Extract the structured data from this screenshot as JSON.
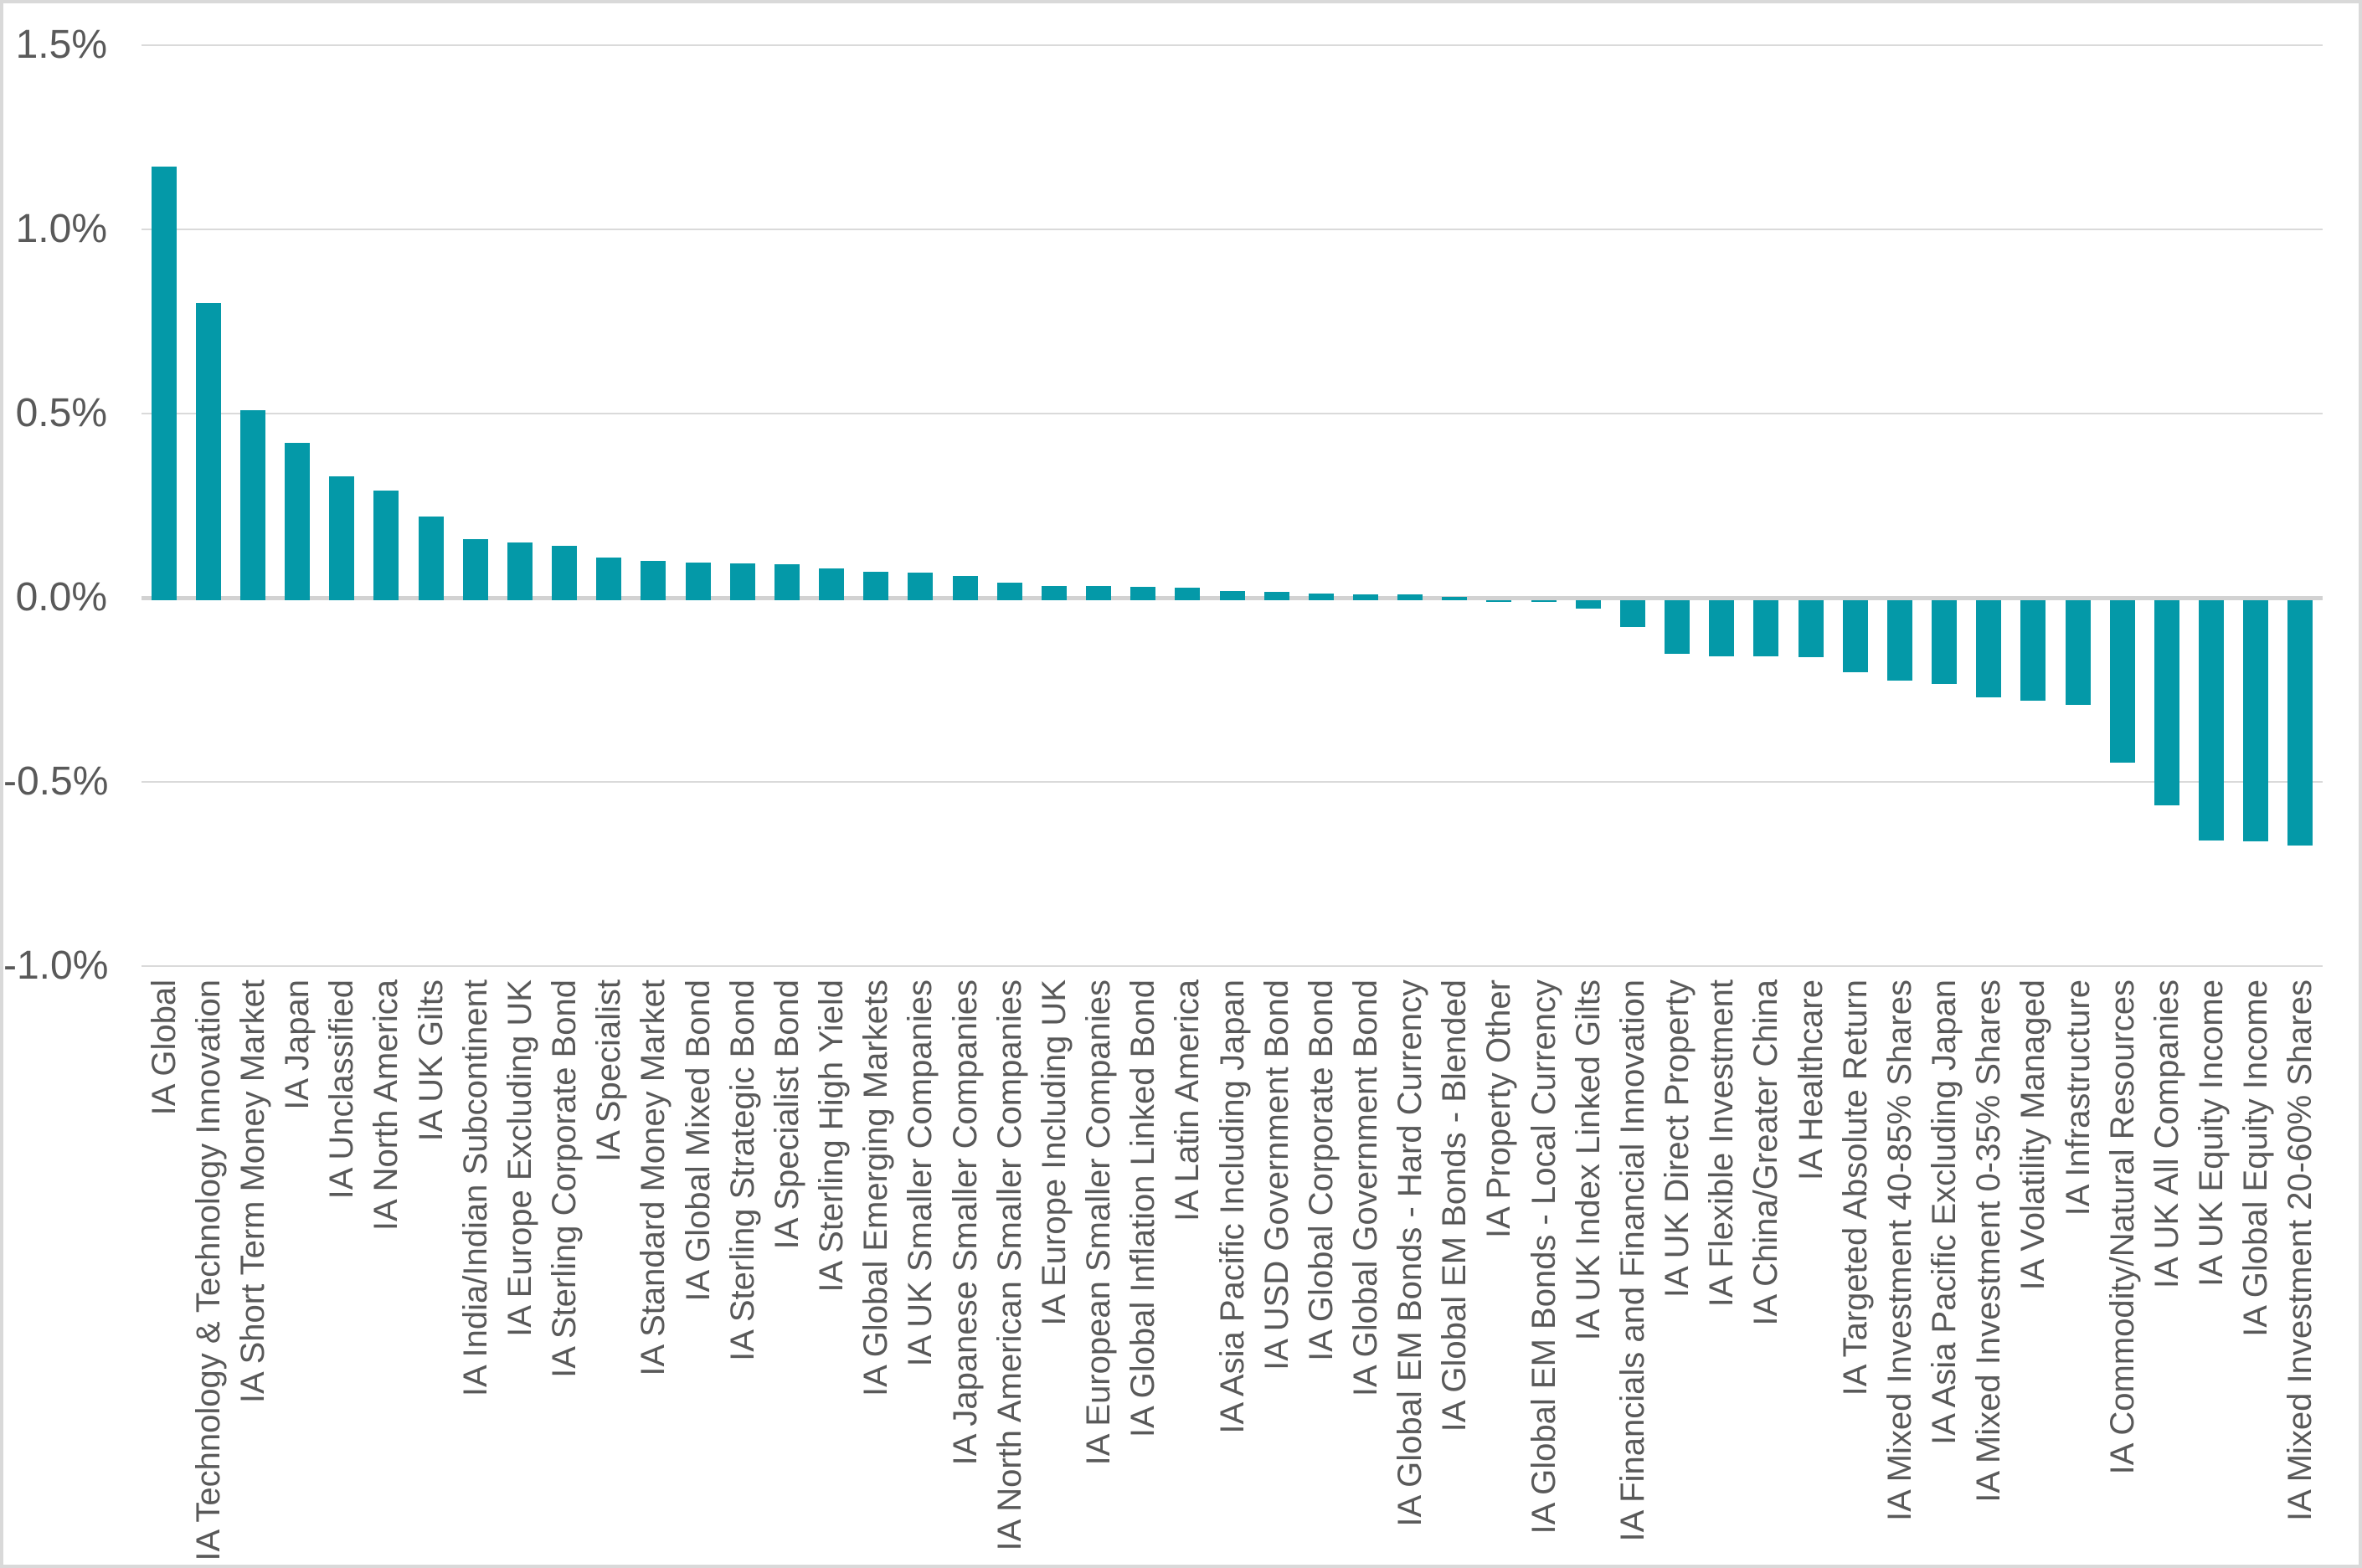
{
  "chart_data": {
    "type": "bar",
    "title": "",
    "xlabel": "",
    "ylabel": "",
    "unit": "%",
    "ylim": [
      -1.0,
      1.5
    ],
    "grid": true,
    "legend": false,
    "bar_color": "#0499a8",
    "grid_color": "#dadada",
    "zero_line_color": "#d2d2d2",
    "tick_text_color": "#595959",
    "yticks": [
      {
        "label": "1.5%",
        "value": 1.5
      },
      {
        "label": "1.0%",
        "value": 1.0
      },
      {
        "label": "0.5%",
        "value": 0.5
      },
      {
        "label": "0.0%",
        "value": 0.0
      },
      {
        "label": "-0.5%",
        "value": -0.5
      },
      {
        "label": "-1.0%",
        "value": -1.0
      }
    ],
    "categories": [
      "IA Global",
      "IA Technology & Technology Innovation",
      "IA Short Term Money Market",
      "IA Japan",
      "IA Unclassified",
      "IA North America",
      "IA UK Gilts",
      "IA India/Indian Subcontinent",
      "IA Europe Excluding UK",
      "IA Sterling Corporate Bond",
      "IA Specialist",
      "IA Standard Money Market",
      "IA Global Mixed Bond",
      "IA Sterling Strategic Bond",
      "IA Specialist Bond",
      "IA Sterling High Yield",
      "IA Global Emerging Markets",
      "IA UK Smaller Companies",
      "IA Japanese Smaller Companies",
      "IA North American Smaller Companies",
      "IA Europe Including UK",
      "IA European Smaller Companies",
      "IA Global Inflation Linked Bond",
      "IA Latin America",
      "IA Asia Pacific Including Japan",
      "IA USD Government Bond",
      "IA Global Corporate Bond",
      "IA Global Government Bond",
      "IA Global EM Bonds - Hard Currency",
      "IA Global EM Bonds - Blended",
      "IA Property Other",
      "IA Global EM Bonds - Local Currency",
      "IA UK Index Linked Gilts",
      "IA Financials and Financial Innovation",
      "IA UK Direct Property",
      "IA Flexible Investment",
      "IA China/Greater China",
      "IA Healthcare",
      "IA Targeted Absolute Return",
      "IA Mixed Investment 40-85% Shares",
      "IA Asia Pacific Excluding Japan",
      "IA Mixed Investment 0-35% Shares",
      "IA Volatility Managed",
      "IA Infrastructure",
      "IA Commodity/Natural Resources",
      "IA UK All Companies",
      "IA UK Equity Income",
      "IA Global Equity Income",
      "IA Mixed Investment 20-60% Shares"
    ],
    "values": [
      1.17,
      0.8,
      0.51,
      0.42,
      0.33,
      0.29,
      0.22,
      0.16,
      0.15,
      0.14,
      0.11,
      0.1,
      0.095,
      0.093,
      0.09,
      0.08,
      0.07,
      0.068,
      0.06,
      0.04,
      0.032,
      0.031,
      0.03,
      0.028,
      0.018,
      0.015,
      0.012,
      0.01,
      0.008,
      0.003,
      -0.006,
      -0.012,
      -0.03,
      -0.08,
      -0.153,
      -0.158,
      -0.16,
      -0.162,
      -0.203,
      -0.224,
      -0.235,
      -0.27,
      -0.28,
      -0.29,
      -0.447,
      -0.564,
      -0.659,
      -0.661,
      -0.672
    ]
  }
}
